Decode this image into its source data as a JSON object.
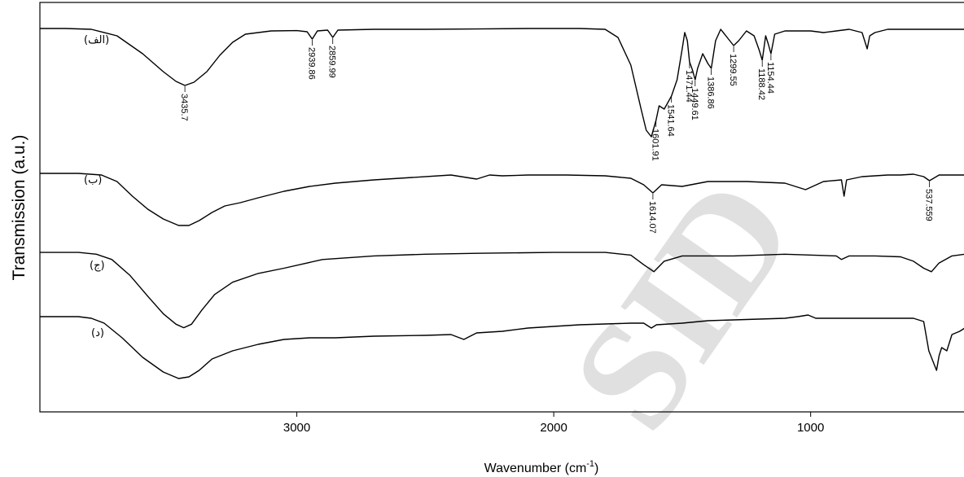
{
  "chart_data": {
    "type": "line",
    "title": "",
    "xlabel": "Wavenumber (cm",
    "xlabel_sup": "-1",
    "xlabel_end": ")",
    "ylabel": "Transmission (a.u.)",
    "xlim": [
      4000,
      400
    ],
    "x_reversed": true,
    "xticks": [
      3000,
      2000,
      1000
    ],
    "xtick_labels": [
      "3000",
      "2000",
      "1000"
    ],
    "grid": false,
    "legend": "none",
    "watermark": "SID",
    "series": [
      {
        "name": "(الف)",
        "points": [
          [
            4000,
            0.25
          ],
          [
            3900,
            0.25
          ],
          [
            3800,
            0.3
          ],
          [
            3700,
            0.7
          ],
          [
            3600,
            1.8
          ],
          [
            3520,
            2.9
          ],
          [
            3470,
            3.5
          ],
          [
            3435.7,
            3.75
          ],
          [
            3400,
            3.55
          ],
          [
            3350,
            2.9
          ],
          [
            3300,
            1.9
          ],
          [
            3250,
            1.1
          ],
          [
            3200,
            0.6
          ],
          [
            3100,
            0.4
          ],
          [
            3000,
            0.38
          ],
          [
            2960,
            0.45
          ],
          [
            2939.86,
            0.9
          ],
          [
            2920,
            0.4
          ],
          [
            2880,
            0.35
          ],
          [
            2859.99,
            0.8
          ],
          [
            2840,
            0.35
          ],
          [
            2700,
            0.3
          ],
          [
            2500,
            0.3
          ],
          [
            2300,
            0.28
          ],
          [
            2100,
            0.25
          ],
          [
            1900,
            0.25
          ],
          [
            1800,
            0.3
          ],
          [
            1750,
            0.8
          ],
          [
            1700,
            2.5
          ],
          [
            1660,
            5.2
          ],
          [
            1640,
            6.5
          ],
          [
            1620,
            6.9
          ],
          [
            1601.91,
            5.9
          ],
          [
            1590,
            5.0
          ],
          [
            1570,
            5.2
          ],
          [
            1541.64,
            4.4
          ],
          [
            1520,
            3.4
          ],
          [
            1500,
            1.5
          ],
          [
            1490,
            0.5
          ],
          [
            1480,
            1.0
          ],
          [
            1471.44,
            2.3
          ],
          [
            1460,
            2.8
          ],
          [
            1449.61,
            3.4
          ],
          [
            1440,
            2.7
          ],
          [
            1420,
            1.8
          ],
          [
            1400,
            2.4
          ],
          [
            1386.86,
            2.7
          ],
          [
            1370,
            1.0
          ],
          [
            1350,
            0.3
          ],
          [
            1320,
            0.9
          ],
          [
            1299.55,
            1.3
          ],
          [
            1280,
            1.0
          ],
          [
            1250,
            0.4
          ],
          [
            1220,
            0.7
          ],
          [
            1200,
            1.6
          ],
          [
            1188.42,
            2.2
          ],
          [
            1175,
            0.7
          ],
          [
            1165,
            1.2
          ],
          [
            1154.44,
            1.8
          ],
          [
            1140,
            0.6
          ],
          [
            1100,
            0.4
          ],
          [
            1050,
            0.4
          ],
          [
            1000,
            0.4
          ],
          [
            950,
            0.5
          ],
          [
            900,
            0.4
          ],
          [
            850,
            0.3
          ],
          [
            800,
            0.5
          ],
          [
            780,
            1.5
          ],
          [
            770,
            0.7
          ],
          [
            750,
            0.5
          ],
          [
            700,
            0.3
          ],
          [
            600,
            0.3
          ],
          [
            500,
            0.3
          ],
          [
            400,
            0.3
          ]
        ],
        "peak_labels": [
          {
            "x": 3435.7,
            "text": "3435.7"
          },
          {
            "x": 2939.86,
            "text": "2939.86"
          },
          {
            "x": 2859.99,
            "text": "2859.99"
          },
          {
            "x": 1601.91,
            "text": "1601.91"
          },
          {
            "x": 1541.64,
            "text": "1541.64"
          },
          {
            "x": 1471.44,
            "text": "1471.44"
          },
          {
            "x": 1449.61,
            "text": "1449.61"
          },
          {
            "x": 1386.86,
            "text": "1386.86"
          },
          {
            "x": 1299.55,
            "text": "1299.55"
          },
          {
            "x": 1188.42,
            "text": "1188.42"
          },
          {
            "x": 1154.44,
            "text": "1154.44"
          }
        ]
      },
      {
        "name": "(ب)",
        "points": [
          [
            4000,
            0.1
          ],
          [
            3850,
            0.1
          ],
          [
            3760,
            0.2
          ],
          [
            3700,
            0.6
          ],
          [
            3640,
            1.5
          ],
          [
            3580,
            2.3
          ],
          [
            3520,
            2.9
          ],
          [
            3460,
            3.3
          ],
          [
            3420,
            3.3
          ],
          [
            3380,
            3.0
          ],
          [
            3330,
            2.5
          ],
          [
            3280,
            2.1
          ],
          [
            3220,
            1.9
          ],
          [
            3150,
            1.6
          ],
          [
            3050,
            1.2
          ],
          [
            2950,
            0.9
          ],
          [
            2850,
            0.7
          ],
          [
            2700,
            0.5
          ],
          [
            2550,
            0.35
          ],
          [
            2400,
            0.2
          ],
          [
            2300,
            0.45
          ],
          [
            2250,
            0.2
          ],
          [
            2200,
            0.25
          ],
          [
            2100,
            0.2
          ],
          [
            1950,
            0.2
          ],
          [
            1800,
            0.25
          ],
          [
            1700,
            0.4
          ],
          [
            1650,
            0.8
          ],
          [
            1614.07,
            1.3
          ],
          [
            1580,
            0.8
          ],
          [
            1500,
            0.9
          ],
          [
            1400,
            0.6
          ],
          [
            1250,
            0.6
          ],
          [
            1100,
            0.7
          ],
          [
            1020,
            1.1
          ],
          [
            950,
            0.6
          ],
          [
            880,
            0.5
          ],
          [
            870,
            1.5
          ],
          [
            860,
            0.5
          ],
          [
            800,
            0.3
          ],
          [
            700,
            0.2
          ],
          [
            650,
            0.2
          ],
          [
            600,
            0.15
          ],
          [
            560,
            0.3
          ],
          [
            537.559,
            0.55
          ],
          [
            500,
            0.2
          ],
          [
            450,
            0.2
          ],
          [
            400,
            0.2
          ]
        ],
        "peak_labels": [
          {
            "x": 1614.07,
            "text": "1614.07"
          },
          {
            "x": 537.559,
            "text": "537.559"
          }
        ]
      },
      {
        "name": "(ج)",
        "points": [
          [
            4000,
            0.1
          ],
          [
            3850,
            0.1
          ],
          [
            3780,
            0.2
          ],
          [
            3720,
            0.5
          ],
          [
            3650,
            1.4
          ],
          [
            3580,
            2.6
          ],
          [
            3520,
            3.6
          ],
          [
            3470,
            4.2
          ],
          [
            3440,
            4.4
          ],
          [
            3410,
            4.2
          ],
          [
            3370,
            3.4
          ],
          [
            3320,
            2.5
          ],
          [
            3250,
            1.8
          ],
          [
            3150,
            1.3
          ],
          [
            3050,
            1.0
          ],
          [
            2900,
            0.5
          ],
          [
            2700,
            0.3
          ],
          [
            2500,
            0.2
          ],
          [
            2300,
            0.15
          ],
          [
            2000,
            0.1
          ],
          [
            1800,
            0.1
          ],
          [
            1700,
            0.25
          ],
          [
            1650,
            0.8
          ],
          [
            1610,
            1.2
          ],
          [
            1570,
            0.6
          ],
          [
            1500,
            0.3
          ],
          [
            1300,
            0.3
          ],
          [
            1100,
            0.2
          ],
          [
            900,
            0.3
          ],
          [
            880,
            0.5
          ],
          [
            850,
            0.3
          ],
          [
            750,
            0.3
          ],
          [
            650,
            0.35
          ],
          [
            600,
            0.6
          ],
          [
            560,
            1.0
          ],
          [
            530,
            1.2
          ],
          [
            500,
            0.7
          ],
          [
            450,
            0.3
          ],
          [
            400,
            0.2
          ]
        ],
        "peak_labels": []
      },
      {
        "name": "(د)",
        "points": [
          [
            4000,
            0.1
          ],
          [
            3850,
            0.1
          ],
          [
            3800,
            0.2
          ],
          [
            3750,
            0.5
          ],
          [
            3680,
            1.4
          ],
          [
            3600,
            2.6
          ],
          [
            3520,
            3.5
          ],
          [
            3460,
            3.9
          ],
          [
            3420,
            3.8
          ],
          [
            3380,
            3.4
          ],
          [
            3330,
            2.7
          ],
          [
            3250,
            2.2
          ],
          [
            3150,
            1.8
          ],
          [
            3050,
            1.5
          ],
          [
            2950,
            1.4
          ],
          [
            2850,
            1.4
          ],
          [
            2700,
            1.3
          ],
          [
            2500,
            1.25
          ],
          [
            2400,
            1.2
          ],
          [
            2350,
            1.5
          ],
          [
            2300,
            1.1
          ],
          [
            2200,
            1.0
          ],
          [
            2100,
            0.8
          ],
          [
            1900,
            0.6
          ],
          [
            1700,
            0.5
          ],
          [
            1650,
            0.5
          ],
          [
            1620,
            0.8
          ],
          [
            1600,
            0.6
          ],
          [
            1500,
            0.5
          ],
          [
            1400,
            0.35
          ],
          [
            1300,
            0.3
          ],
          [
            1100,
            0.2
          ],
          [
            1050,
            0.1
          ],
          [
            1010,
            0.0
          ],
          [
            980,
            0.2
          ],
          [
            800,
            0.2
          ],
          [
            600,
            0.2
          ],
          [
            560,
            0.4
          ],
          [
            540,
            2.2
          ],
          [
            520,
            3.0
          ],
          [
            510,
            3.4
          ],
          [
            500,
            2.5
          ],
          [
            490,
            2.0
          ],
          [
            470,
            2.2
          ],
          [
            450,
            1.2
          ],
          [
            420,
            1.0
          ],
          [
            400,
            0.8
          ]
        ],
        "peak_labels": []
      }
    ]
  }
}
